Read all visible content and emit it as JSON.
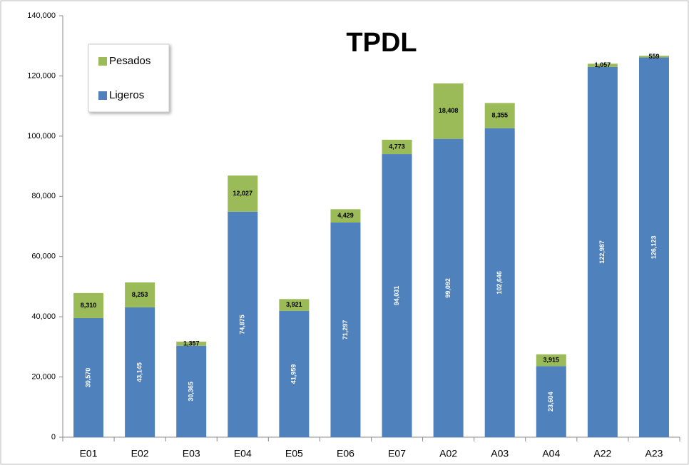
{
  "chart_data": {
    "type": "bar",
    "stacked": true,
    "title": "TPDL",
    "categories": [
      "E01",
      "E02",
      "E03",
      "E04",
      "E05",
      "E06",
      "E07",
      "A02",
      "A03",
      "A04",
      "A22",
      "A23"
    ],
    "series": [
      {
        "name": "Ligeros",
        "color": "#4f81bd",
        "values": [
          39570,
          43145,
          30365,
          74875,
          41959,
          71297,
          94031,
          99092,
          102646,
          23604,
          122987,
          126123
        ],
        "value_labels": [
          "39,570",
          "43,145",
          "30,365",
          "74,875",
          "41,959",
          "71,297",
          "94,031",
          "99,092",
          "102,646",
          "23,604",
          "122,987",
          "126,123"
        ]
      },
      {
        "name": "Pesados",
        "color": "#9bbb59",
        "values": [
          8310,
          8253,
          1357,
          12027,
          3921,
          4429,
          4773,
          18408,
          8355,
          3915,
          1057,
          559
        ],
        "value_labels": [
          "8,310",
          "8,253",
          "1,357",
          "12,027",
          "3,921",
          "4,429",
          "4,773",
          "18,408",
          "8,355",
          "3,915",
          "1,057",
          "559"
        ]
      }
    ],
    "ylim": [
      0,
      140000
    ],
    "yticks": [
      0,
      {
        "value": 20000,
        "label": "20,000"
      },
      {
        "value": 40000,
        "label": "40,000"
      },
      {
        "value": 60000,
        "label": "60,000"
      },
      {
        "value": 80000,
        "label": "80,000"
      },
      {
        "value": 100000,
        "label": "100,000"
      },
      {
        "value": 120000,
        "label": "120,000"
      },
      {
        "value": 140000,
        "label": "140,000"
      }
    ],
    "grid": false,
    "legend": "upper left"
  }
}
